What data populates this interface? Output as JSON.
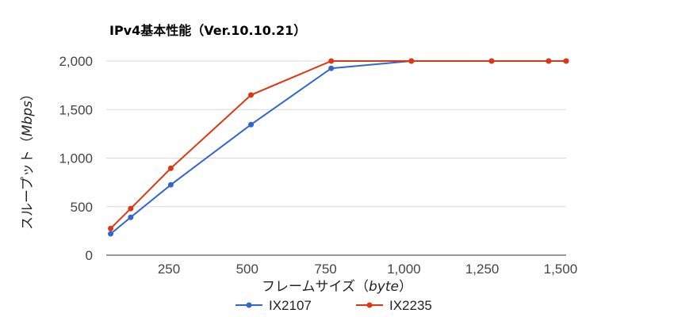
{
  "chart_data": {
    "type": "line",
    "title": "IPv4基本性能（Ver.10.10.21）",
    "xlabel": "フレームサイズ（",
    "xlabel_unit": "byte",
    "xlabel_close": "）",
    "ylabel": "スループット（",
    "ylabel_unit": "Mbps",
    "ylabel_close": "）",
    "xlim": [
      50,
      1518
    ],
    "ylim": [
      0,
      2000
    ],
    "x_ticks": [
      250,
      500,
      750,
      1000,
      1250,
      1500
    ],
    "x_tick_labels": [
      "250",
      "500",
      "750",
      "1,000",
      "1,250",
      "1,500"
    ],
    "y_ticks": [
      0,
      500,
      1000,
      1500,
      2000
    ],
    "y_tick_labels": [
      "0",
      "500",
      "1,000",
      "1,500",
      "2,000"
    ],
    "grid": true,
    "legend_position": "bottom",
    "x": [
      64,
      128,
      256,
      512,
      768,
      1024,
      1280,
      1462,
      1518
    ],
    "series": [
      {
        "name": "IX2107",
        "color": "#3366cc",
        "values": [
          220,
          390,
          725,
          1345,
          1925,
          2000,
          2000,
          2000,
          2000
        ]
      },
      {
        "name": "IX2235",
        "color": "#dc3912",
        "values": [
          275,
          480,
          895,
          1650,
          2000,
          2000,
          2000,
          2000,
          2000
        ]
      }
    ]
  }
}
